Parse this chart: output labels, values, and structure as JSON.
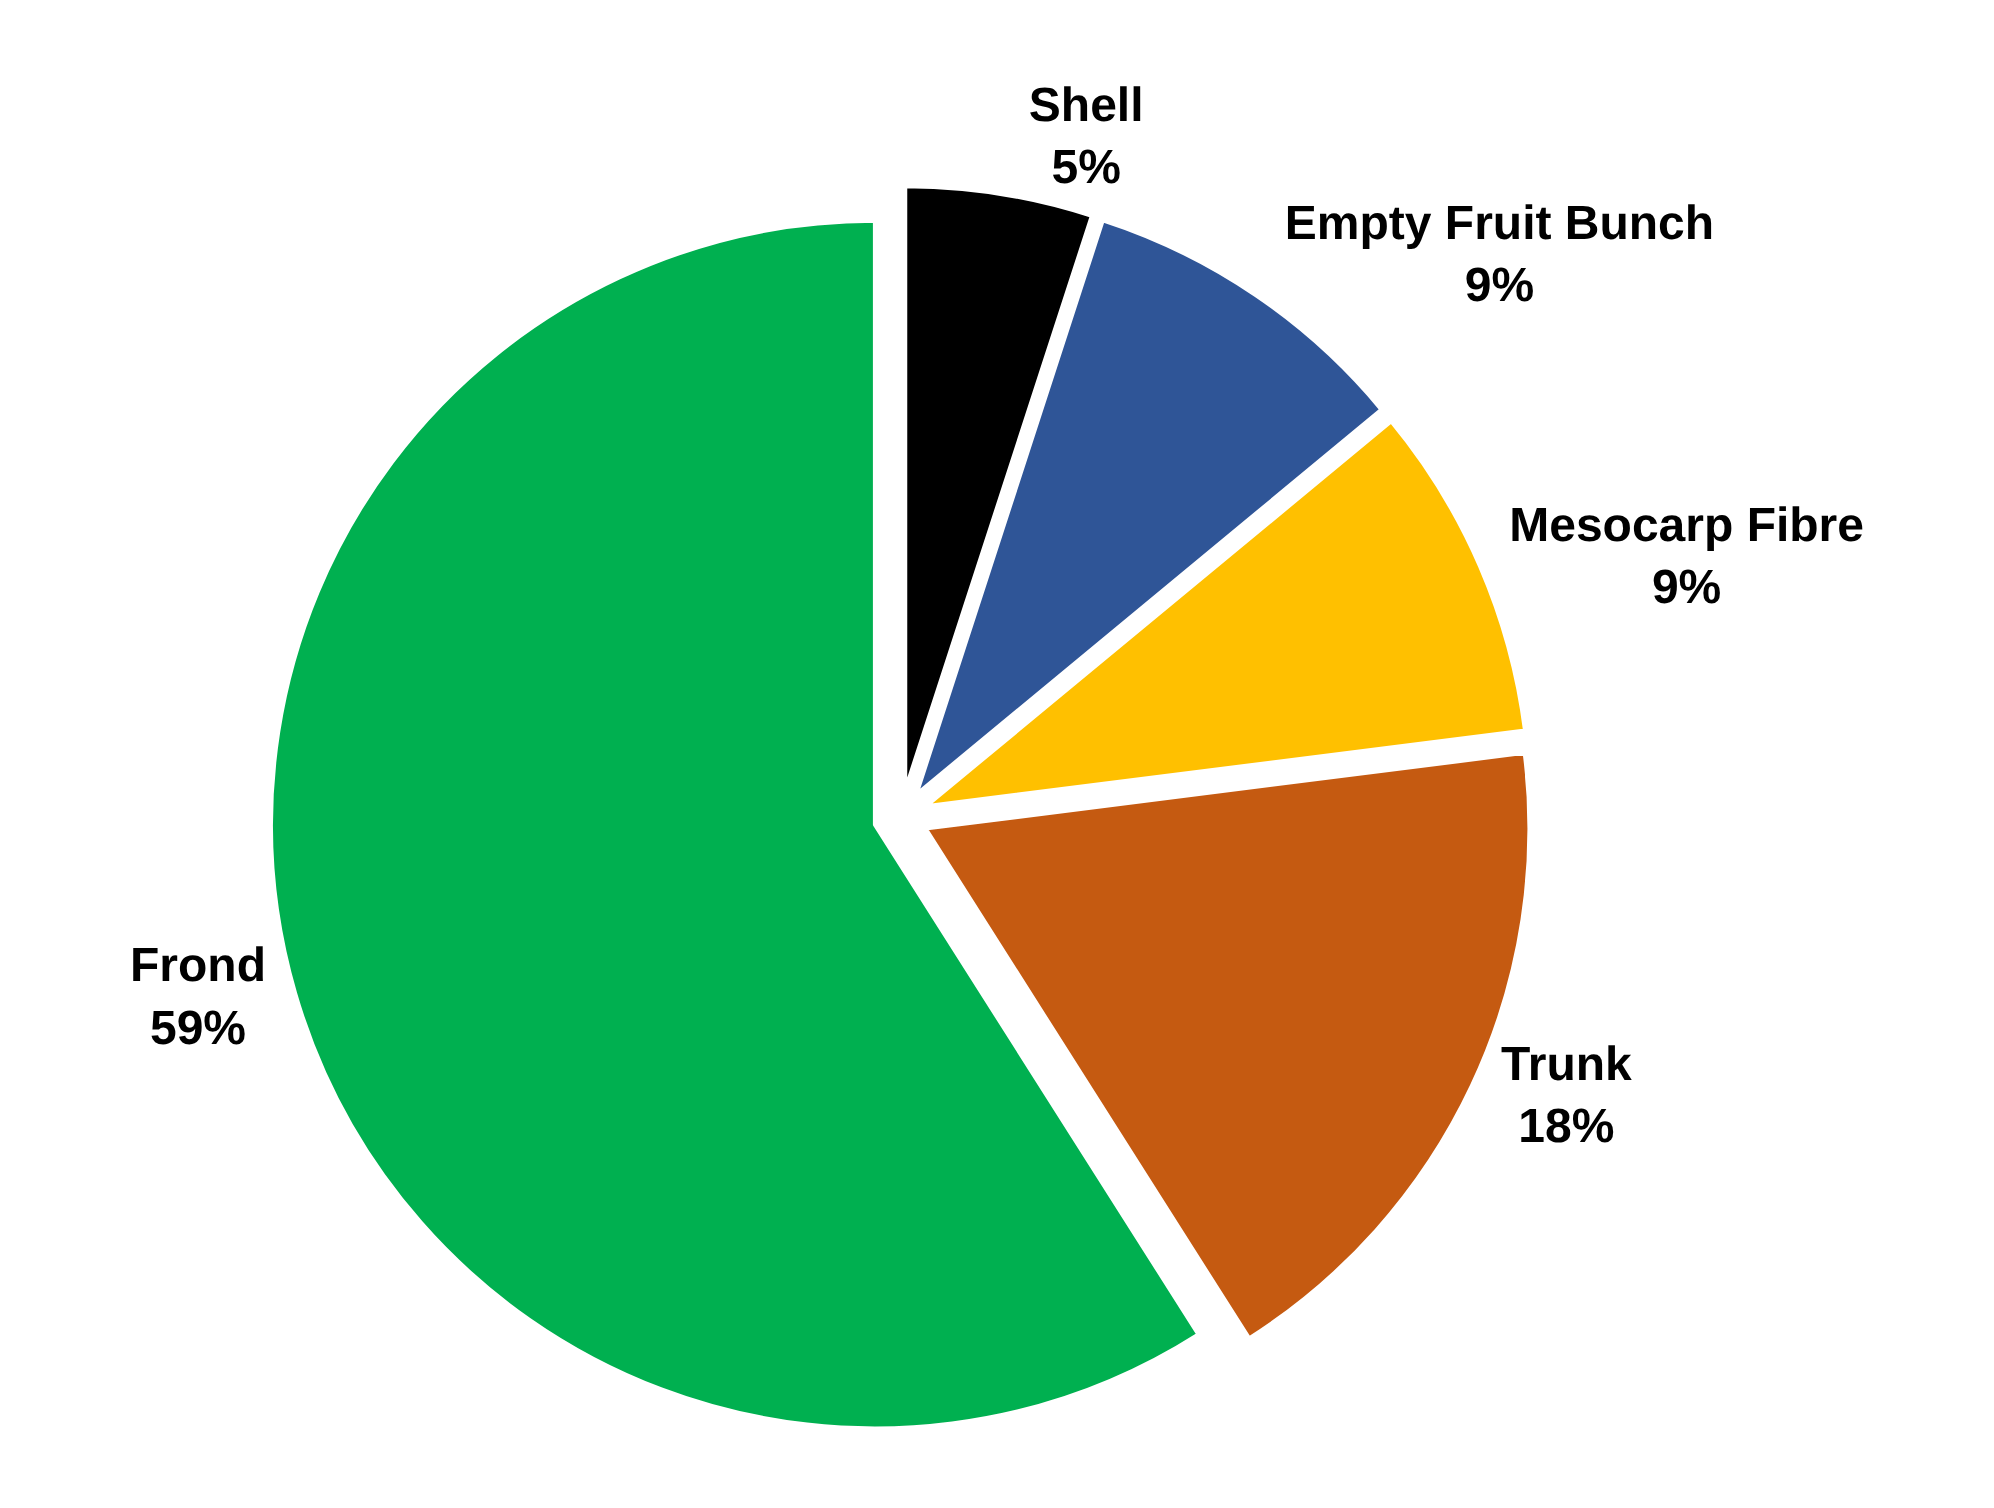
{
  "chart_data": {
    "type": "pie",
    "categories": [
      "Shell",
      "Empty Fruit Bunch",
      "Mesocarp Fibre",
      "Trunk",
      "Frond"
    ],
    "values": [
      5,
      9,
      9,
      18,
      59
    ],
    "value_labels": [
      "5%",
      "9%",
      "9%",
      "18%",
      "59%"
    ],
    "colors": [
      "#000000",
      "#2f5597",
      "#ffc000",
      "#c55a11",
      "#00b050"
    ]
  }
}
